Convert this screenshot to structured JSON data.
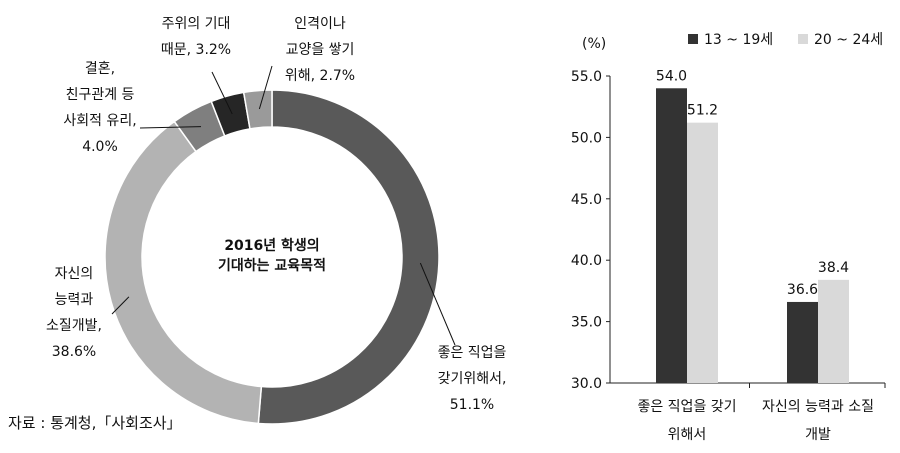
{
  "chart_data": [
    {
      "type": "pie",
      "title": "2016년 학생의 기대하는 교육목적",
      "title_lines": [
        "2016년 학생의",
        "기대하는 교육목적"
      ],
      "slices": [
        {
          "label_lines": [
            "좋은 직업을",
            "갖기위해서,",
            "51.1%"
          ],
          "value": 51.1,
          "color": "#595959"
        },
        {
          "label_lines": [
            "자신의",
            "능력과",
            "소질개발,",
            "38.6%"
          ],
          "value": 38.6,
          "color": "#b3b3b3"
        },
        {
          "label_lines": [
            "결혼,",
            "친구관계 등",
            "사회적 유리,",
            "4.0%"
          ],
          "value": 4.0,
          "color": "#7f7f7f"
        },
        {
          "label_lines": [
            "주위의 기대",
            "때문, 3.2%"
          ],
          "value": 3.2,
          "color": "#262626"
        },
        {
          "label_lines": [
            "인격이나",
            "교양을 쌓기",
            "위해, 2.7%"
          ],
          "value": 2.7,
          "color": "#9a9a9a"
        }
      ]
    },
    {
      "type": "bar",
      "ylabel": "(%)",
      "ylim": [
        30.0,
        55.0
      ],
      "yticks": [
        "30.0",
        "35.0",
        "40.0",
        "45.0",
        "50.0",
        "55.0"
      ],
      "category_lines": [
        [
          "좋은 직업을 갖기",
          "위해서"
        ],
        [
          "자신의 능력과 소질",
          "개발"
        ]
      ],
      "series": [
        {
          "name": "13 ~ 19세",
          "values": [
            54.0,
            36.6
          ],
          "labels": [
            "54.0",
            "36.6"
          ],
          "color": "#333333"
        },
        {
          "name": "20 ~ 24세",
          "values": [
            51.2,
            38.4
          ],
          "labels": [
            "51.2",
            "38.4"
          ],
          "color": "#d9d9d9"
        }
      ],
      "legend_position": "top"
    }
  ],
  "source": "자료 : 통계청,「사회조사」"
}
